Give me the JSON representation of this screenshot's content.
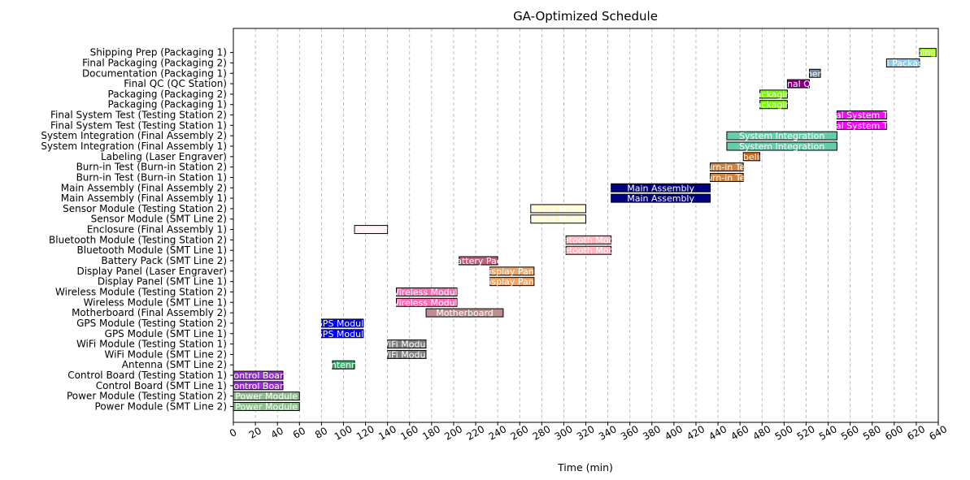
{
  "chart_data": {
    "type": "gantt",
    "title": "GA-Optimized Schedule",
    "xlabel": "Time (min)",
    "ylabel": "",
    "xlim": [
      0,
      640
    ],
    "xticks": [
      0,
      20,
      40,
      60,
      80,
      100,
      120,
      140,
      160,
      180,
      200,
      220,
      240,
      260,
      280,
      300,
      320,
      340,
      360,
      380,
      400,
      420,
      440,
      460,
      480,
      500,
      520,
      540,
      560,
      580,
      600,
      620,
      640
    ],
    "grid": "vertical-dashed",
    "categories": [
      "Power Module (SMT Line 2)",
      "Power Module (Testing Station 2)",
      "Control Board (SMT Line 1)",
      "Control Board (Testing Station 1)",
      "Antenna (SMT Line 2)",
      "WiFi Module (SMT Line 2)",
      "WiFi Module (Testing Station 1)",
      "GPS Module (SMT Line 1)",
      "GPS Module (Testing Station 2)",
      "Motherboard (Final Assembly 2)",
      "Wireless Module (SMT Line 1)",
      "Wireless Module (Testing Station 2)",
      "Display Panel (SMT Line 1)",
      "Display Panel (Laser Engraver)",
      "Battery Pack (SMT Line 2)",
      "Bluetooth Module (SMT Line 1)",
      "Bluetooth Module (Testing Station 2)",
      "Enclosure (Final Assembly 1)",
      "Sensor Module (SMT Line 2)",
      "Sensor Module (Testing Station 2)",
      "Main Assembly (Final Assembly 1)",
      "Main Assembly (Final Assembly 2)",
      "Burn-in Test (Burn-in Station 1)",
      "Burn-in Test (Burn-in Station 2)",
      "Labeling (Laser Engraver)",
      "System Integration (Final Assembly 1)",
      "System Integration (Final Assembly 2)",
      "Final System Test (Testing Station 1)",
      "Final System Test (Testing Station 2)",
      "Packaging (Packaging 1)",
      "Packaging (Packaging 2)",
      "Final QC (QC Station)",
      "Documentation (Packaging 1)",
      "Final Packaging (Packaging 2)",
      "Shipping Prep (Packaging 1)"
    ],
    "tasks": [
      {
        "start": 0,
        "end": 60,
        "label": "Power Module",
        "color": "#8fbc8f"
      },
      {
        "start": 0,
        "end": 60,
        "label": "Power Module",
        "color": "#8fbc8f"
      },
      {
        "start": 0,
        "end": 45,
        "label": "Control Board",
        "color": "#9932cc"
      },
      {
        "start": 0,
        "end": 45,
        "label": "Control Board",
        "color": "#9932cc"
      },
      {
        "start": 90,
        "end": 110,
        "label": "Antenna",
        "color": "#3cb371"
      },
      {
        "start": 140,
        "end": 175,
        "label": "WiFi Module",
        "color": "#808080"
      },
      {
        "start": 140,
        "end": 175,
        "label": "WiFi Module",
        "color": "#808080"
      },
      {
        "start": 80,
        "end": 118,
        "label": "GPS Module",
        "color": "#0000ff"
      },
      {
        "start": 80,
        "end": 118,
        "label": "GPS Module",
        "color": "#0000ff"
      },
      {
        "start": 175,
        "end": 245,
        "label": "Motherboard",
        "color": "#bc8f8f"
      },
      {
        "start": 148,
        "end": 203,
        "label": "Wireless Module",
        "color": "#ff69b4"
      },
      {
        "start": 148,
        "end": 203,
        "label": "Wireless Module",
        "color": "#ff69b4"
      },
      {
        "start": 233,
        "end": 273,
        "label": "Display Panel",
        "color": "#f4a460"
      },
      {
        "start": 233,
        "end": 273,
        "label": "Display Panel",
        "color": "#f4a460"
      },
      {
        "start": 205,
        "end": 240,
        "label": "Battery Pack",
        "color": "#c0607f"
      },
      {
        "start": 302,
        "end": 343,
        "label": "Bluetooth Module",
        "color": "#ffb6c1"
      },
      {
        "start": 302,
        "end": 343,
        "label": "Bluetooth Module",
        "color": "#ffb6c1"
      },
      {
        "start": 110,
        "end": 140,
        "label": "Enclosure",
        "color": "#fff0f5"
      },
      {
        "start": 270,
        "end": 320,
        "label": "Sensor Module",
        "color": "#fffacd"
      },
      {
        "start": 270,
        "end": 320,
        "label": "Sensor Module",
        "color": "#fffacd"
      },
      {
        "start": 343,
        "end": 433,
        "label": "Main Assembly",
        "color": "#000080"
      },
      {
        "start": 343,
        "end": 433,
        "label": "Main Assembly",
        "color": "#000080"
      },
      {
        "start": 433,
        "end": 463,
        "label": "Burn-in Test",
        "color": "#cd853f"
      },
      {
        "start": 433,
        "end": 463,
        "label": "Burn-in Test",
        "color": "#cd853f"
      },
      {
        "start": 463,
        "end": 478,
        "label": "Labeling",
        "color": "#d2691e"
      },
      {
        "start": 448,
        "end": 548,
        "label": "System Integration",
        "color": "#66cdaa"
      },
      {
        "start": 448,
        "end": 548,
        "label": "System Integration",
        "color": "#66cdaa"
      },
      {
        "start": 548,
        "end": 593,
        "label": "Final System Test",
        "color": "#ff00ff"
      },
      {
        "start": 548,
        "end": 593,
        "label": "Final System Test",
        "color": "#ff00ff"
      },
      {
        "start": 478,
        "end": 503,
        "label": "Packaging",
        "color": "#7cfc00"
      },
      {
        "start": 478,
        "end": 503,
        "label": "Packaging",
        "color": "#7cfc00"
      },
      {
        "start": 503,
        "end": 523,
        "label": "Final QC",
        "color": "#800080"
      },
      {
        "start": 523,
        "end": 533,
        "label": "Documentation",
        "color": "#778899"
      },
      {
        "start": 593,
        "end": 623,
        "label": "Final Packaging",
        "color": "#87ceeb"
      },
      {
        "start": 623,
        "end": 638,
        "label": "Shipping Prep",
        "color": "#adff2f"
      }
    ]
  }
}
